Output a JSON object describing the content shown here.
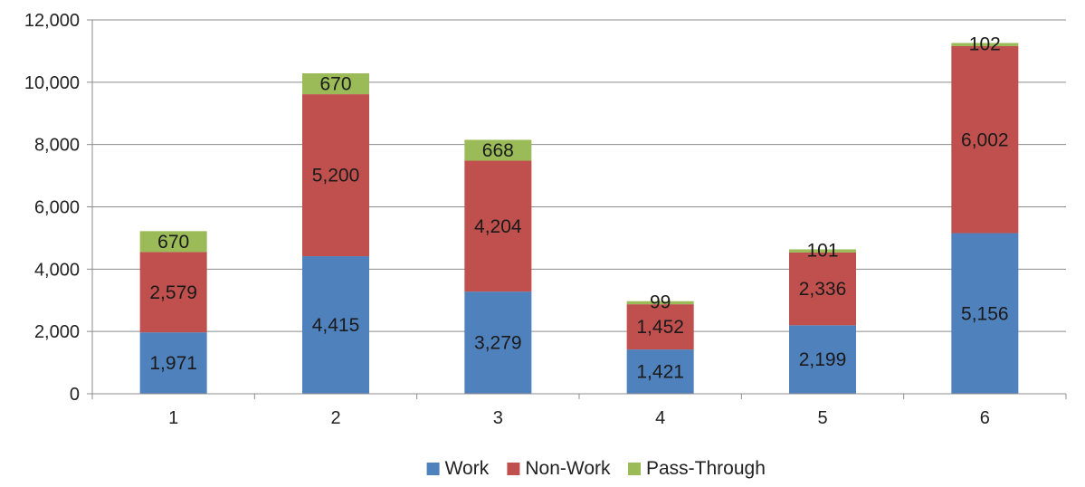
{
  "chart_data": {
    "type": "bar",
    "stacked": true,
    "categories": [
      "1",
      "2",
      "3",
      "4",
      "5",
      "6"
    ],
    "series": [
      {
        "name": "Work",
        "color": "#4f81bd",
        "values": [
          1971,
          4415,
          3279,
          1421,
          2199,
          5156
        ],
        "labels": [
          "1,971",
          "4,415",
          "3,279",
          "1,421",
          "2,199",
          "5,156"
        ]
      },
      {
        "name": "Non-Work",
        "color": "#c0504d",
        "values": [
          2579,
          5200,
          4204,
          1452,
          2336,
          6002
        ],
        "labels": [
          "2,579",
          "5,200",
          "4,204",
          "1,452",
          "2,336",
          "6,002"
        ]
      },
      {
        "name": "Pass-Through",
        "color": "#9bbb59",
        "values": [
          670,
          670,
          668,
          99,
          101,
          102
        ],
        "labels": [
          "670",
          "670",
          "668",
          "99",
          "101",
          "102"
        ]
      }
    ],
    "ylim": [
      0,
      12000
    ],
    "yticks": [
      0,
      2000,
      4000,
      6000,
      8000,
      10000,
      12000
    ],
    "ytick_labels": [
      "0",
      "2,000",
      "4,000",
      "6,000",
      "8,000",
      "10,000",
      "12,000"
    ],
    "grid": true,
    "legend": "bottom-center"
  }
}
